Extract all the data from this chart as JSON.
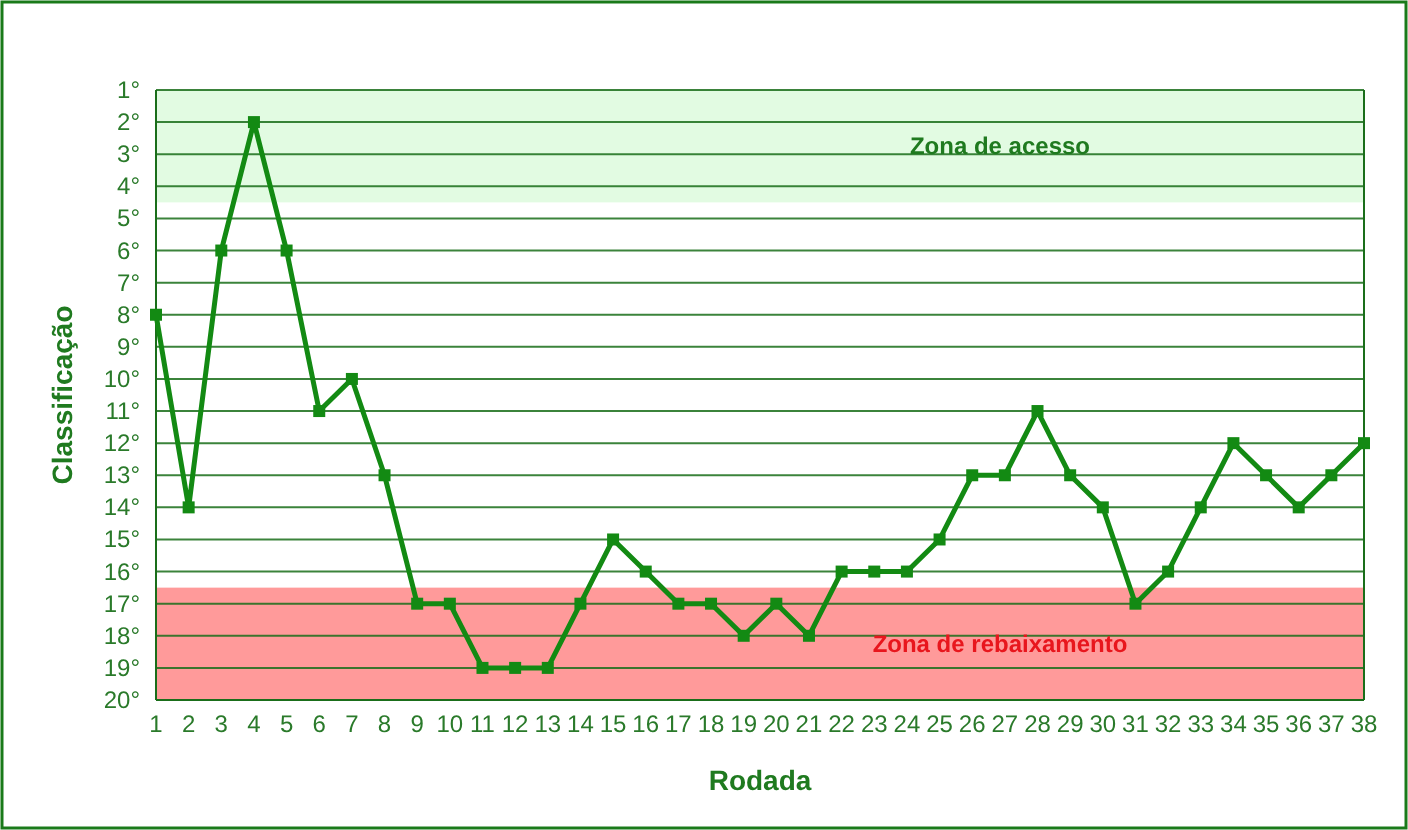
{
  "chart_data": {
    "type": "line",
    "xlabel": "Rodada",
    "ylabel": "Classificação",
    "x": [
      1,
      2,
      3,
      4,
      5,
      6,
      7,
      8,
      9,
      10,
      11,
      12,
      13,
      14,
      15,
      16,
      17,
      18,
      19,
      20,
      21,
      22,
      23,
      24,
      25,
      26,
      27,
      28,
      29,
      30,
      31,
      32,
      33,
      34,
      35,
      36,
      37,
      38
    ],
    "series": [
      {
        "color": "#138a13",
        "values": [
          8,
          14,
          6,
          2,
          6,
          11,
          10,
          13,
          17,
          17,
          19,
          19,
          19,
          17,
          15,
          16,
          17,
          17,
          18,
          17,
          18,
          16,
          16,
          16,
          15,
          13,
          13,
          11,
          13,
          14,
          17,
          16,
          14,
          12,
          13,
          14,
          13,
          12
        ]
      }
    ],
    "xlim": [
      1,
      38
    ],
    "xticks": [
      1,
      2,
      3,
      4,
      5,
      6,
      7,
      8,
      9,
      10,
      11,
      12,
      13,
      14,
      15,
      16,
      17,
      18,
      19,
      20,
      21,
      22,
      23,
      24,
      25,
      26,
      27,
      28,
      29,
      30,
      31,
      32,
      33,
      34,
      35,
      36,
      37,
      38
    ],
    "ylim": [
      20,
      1
    ],
    "yticks": [
      {
        "value": 1,
        "label": "1°"
      },
      {
        "value": 2,
        "label": "2°"
      },
      {
        "value": 3,
        "label": "3°"
      },
      {
        "value": 4,
        "label": "4°"
      },
      {
        "value": 5,
        "label": "5°"
      },
      {
        "value": 6,
        "label": "6°"
      },
      {
        "value": 7,
        "label": "7°"
      },
      {
        "value": 8,
        "label": "8°"
      },
      {
        "value": 9,
        "label": "9°"
      },
      {
        "value": 10,
        "label": "10°"
      },
      {
        "value": 11,
        "label": "11°"
      },
      {
        "value": 12,
        "label": "12°"
      },
      {
        "value": 13,
        "label": "13°"
      },
      {
        "value": 14,
        "label": "14°"
      },
      {
        "value": 15,
        "label": "15°"
      },
      {
        "value": 16,
        "label": "16°"
      },
      {
        "value": 17,
        "label": "17°"
      },
      {
        "value": 18,
        "label": "18°"
      },
      {
        "value": 19,
        "label": "19°"
      },
      {
        "value": 20,
        "label": "20°"
      }
    ],
    "bands": [
      {
        "axis": "y",
        "from": 1,
        "to": 4.5,
        "label": "Zona de acesso",
        "color": "#e2fbe2"
      },
      {
        "axis": "y",
        "from": 16.5,
        "to": 20,
        "label": "Zona de rebaixamento",
        "color": "#ff9a9a"
      }
    ],
    "grid": "y",
    "marker": "square",
    "line_style": "solid"
  }
}
